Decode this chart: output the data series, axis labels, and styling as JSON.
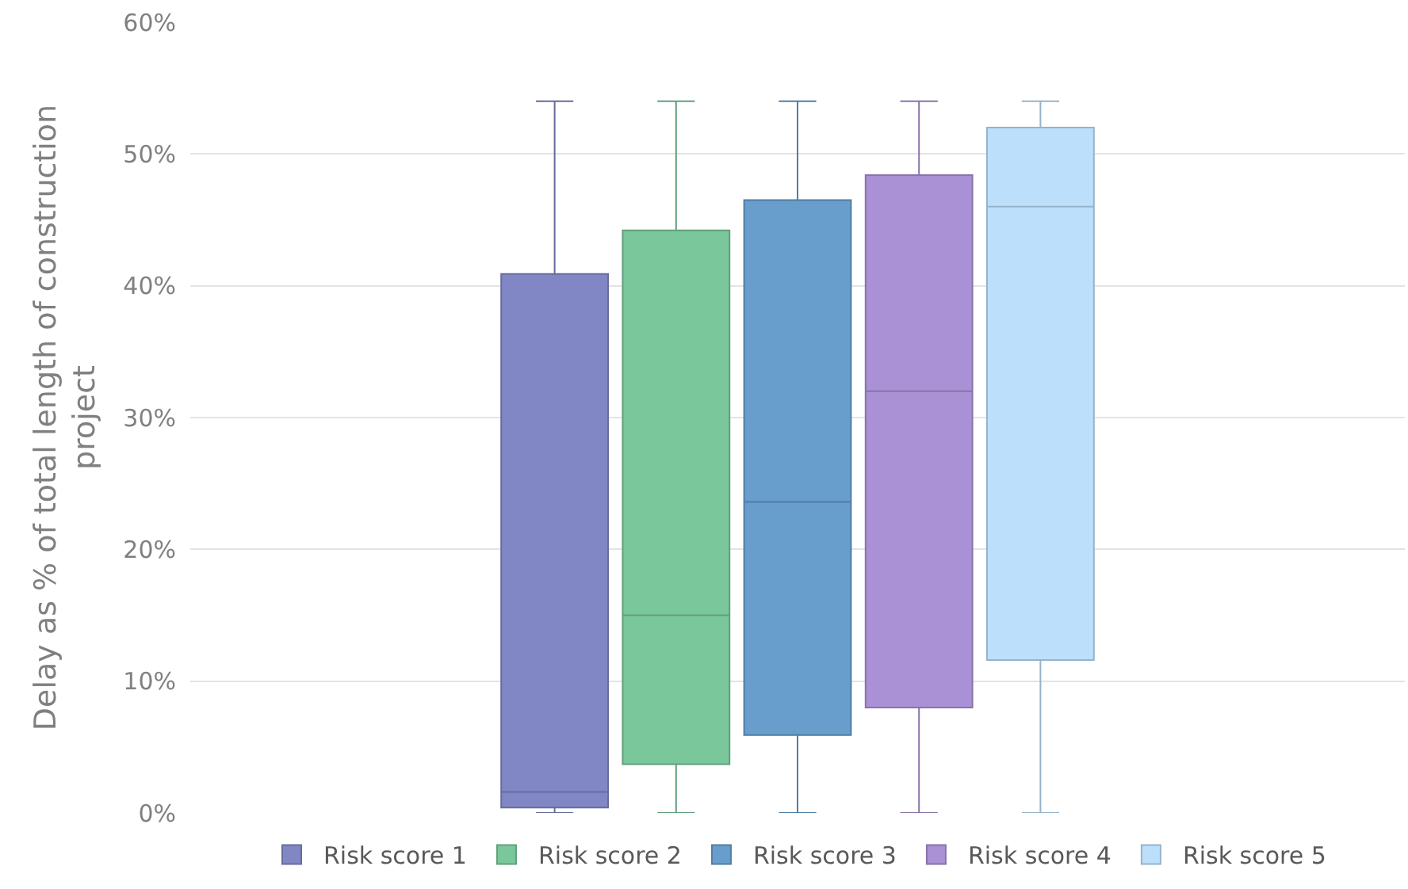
{
  "chart_data": {
    "type": "box",
    "ylabel": "Delay as % of total length of construction project",
    "categories": [
      null
    ],
    "ylim": [
      0,
      60
    ],
    "yticks": [
      {
        "value": 0,
        "label": "0%"
      },
      {
        "value": 10,
        "label": "10%"
      },
      {
        "value": 20,
        "label": "20%"
      },
      {
        "value": 30,
        "label": "30%"
      },
      {
        "value": 40,
        "label": "40%"
      },
      {
        "value": 50,
        "label": "50%"
      },
      {
        "value": 60,
        "label": "60%"
      }
    ],
    "grid": "y",
    "legend": "bottom",
    "series": [
      {
        "name": "Risk score 1",
        "color": "#8087c4",
        "boxes": [
          {
            "low": 0,
            "q1": 0.4,
            "median": 1.6,
            "q3": 40.9,
            "high": 54
          }
        ]
      },
      {
        "name": "Risk score 2",
        "color": "#7bc79c",
        "boxes": [
          {
            "low": 0,
            "q1": 3.7,
            "median": 15,
            "q3": 44.2,
            "high": 54
          }
        ]
      },
      {
        "name": "Risk score 3",
        "color": "#679ecb",
        "boxes": [
          {
            "low": 0,
            "q1": 5.9,
            "median": 23.6,
            "q3": 46.5,
            "high": 54
          }
        ]
      },
      {
        "name": "Risk score 4",
        "color": "#aa90d5",
        "boxes": [
          {
            "low": 0,
            "q1": 8,
            "median": 32,
            "q3": 48.4,
            "high": 54
          }
        ]
      },
      {
        "name": "Risk score 5",
        "color": "#bce0fb",
        "boxes": [
          {
            "low": 0,
            "q1": 11.6,
            "median": 46,
            "q3": 52,
            "high": 54
          }
        ]
      }
    ]
  }
}
